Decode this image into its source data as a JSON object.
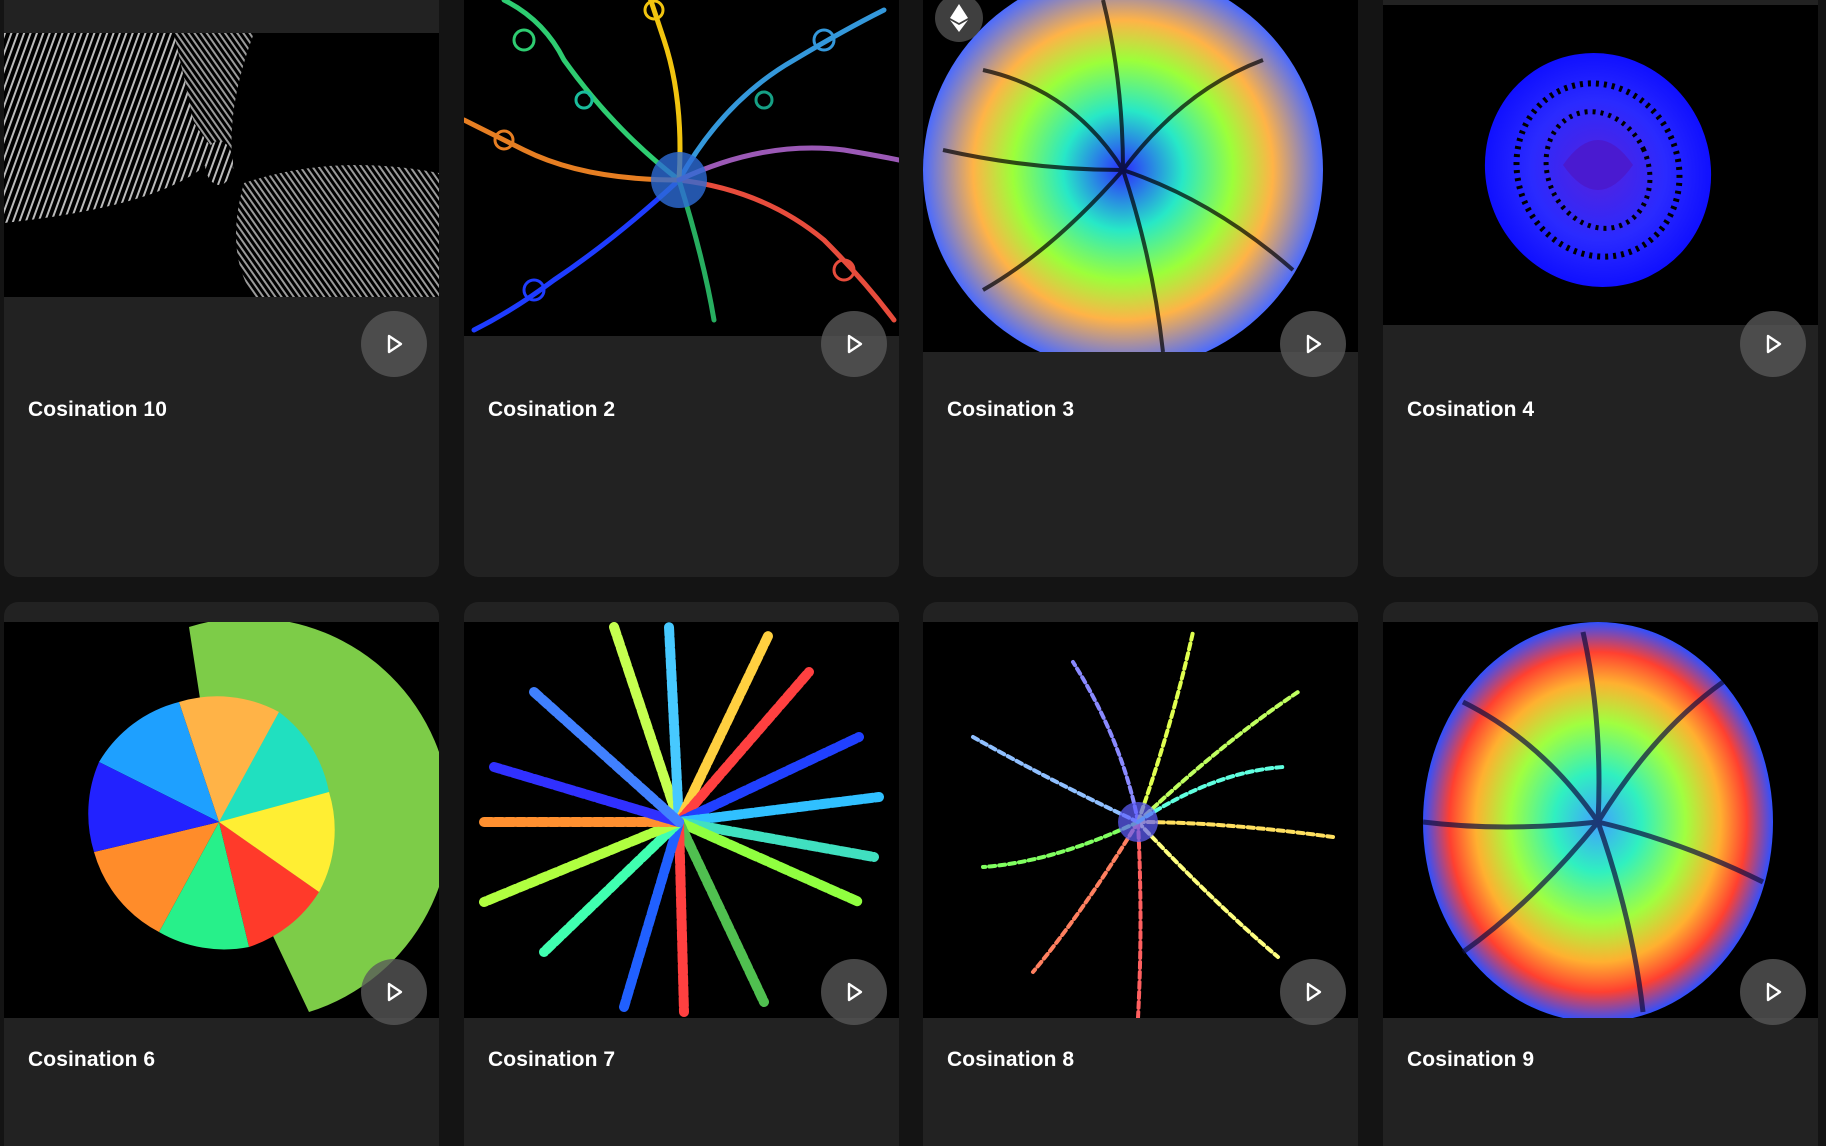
{
  "gallery": {
    "items": [
      {
        "title": "Cosination 10",
        "image": "cosination-10-artwork",
        "play_icon": "play-icon"
      },
      {
        "title": "Cosination 2",
        "image": "cosination-2-artwork",
        "play_icon": "play-icon"
      },
      {
        "title": "Cosination 3",
        "image": "cosination-3-artwork",
        "play_icon": "play-icon",
        "badge_icon": "ethereum-icon"
      },
      {
        "title": "Cosination 4",
        "image": "cosination-4-artwork",
        "play_icon": "play-icon"
      },
      {
        "title": "Cosination 6",
        "image": "cosination-6-artwork",
        "play_icon": "play-icon"
      },
      {
        "title": "Cosination 7",
        "image": "cosination-7-artwork",
        "play_icon": "play-icon"
      },
      {
        "title": "Cosination 8",
        "image": "cosination-8-artwork",
        "play_icon": "play-icon"
      },
      {
        "title": "Cosination 9",
        "image": "cosination-9-artwork",
        "play_icon": "play-icon"
      }
    ]
  },
  "colors": {
    "page_background": "#141414",
    "card_background": "#222222",
    "title_text": "#ffffff",
    "play_button": "#585858"
  }
}
